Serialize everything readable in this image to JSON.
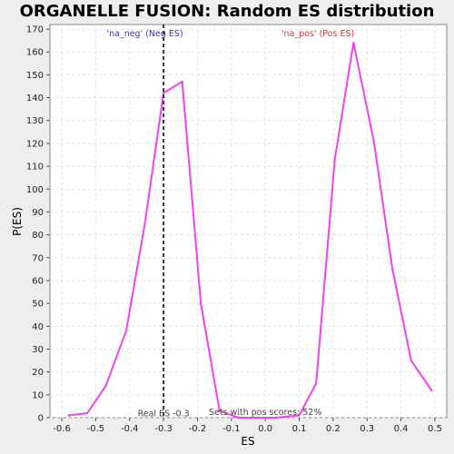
{
  "chart_data": {
    "type": "line",
    "title": "ORGANELLE FUSION: Random ES distribution",
    "xlabel": "ES",
    "ylabel": "P(ES)",
    "xlim": [
      -0.635,
      0.535
    ],
    "ylim": [
      0,
      172
    ],
    "xticks": [
      -0.6,
      -0.5,
      -0.4,
      -0.3,
      -0.2,
      -0.1,
      0.0,
      0.1,
      0.2,
      0.3,
      0.4,
      0.5
    ],
    "xtick_labels": [
      "-0.6",
      "-0.5",
      "-0.4",
      "-0.3",
      "-0.2",
      "-0.1",
      "0.0",
      "0.1",
      "0.2",
      "0.3",
      "0.4",
      "0.5"
    ],
    "yticks": [
      0,
      10,
      20,
      30,
      40,
      50,
      60,
      70,
      80,
      90,
      100,
      110,
      120,
      130,
      140,
      150,
      160,
      170
    ],
    "grid": true,
    "line_color": "#ee44ee",
    "series": [
      {
        "name": "",
        "x": [
          -0.58,
          -0.525,
          -0.47,
          -0.41,
          -0.355,
          -0.3,
          -0.245,
          -0.19,
          -0.135,
          -0.08,
          -0.025,
          0.03,
          0.1,
          0.15,
          0.205,
          0.26,
          0.32,
          0.375,
          0.43,
          0.49
        ],
        "y": [
          1,
          2,
          14,
          38,
          85,
          142,
          147,
          50,
          3,
          0,
          0,
          0,
          1,
          15,
          113,
          164,
          121,
          65,
          25,
          12
        ]
      }
    ],
    "real_es": -0.3,
    "annotations": {
      "neg": "'na_neg' (Neg ES)",
      "pos": "'na_pos' (Pos ES)",
      "real_es": "Real ES -0.3",
      "sets_pos": "Sets with pos scores: 52%"
    },
    "colors": {
      "neg_label": "#3333cc",
      "pos_label": "#dd3333",
      "real_es_line": "#333333"
    }
  }
}
